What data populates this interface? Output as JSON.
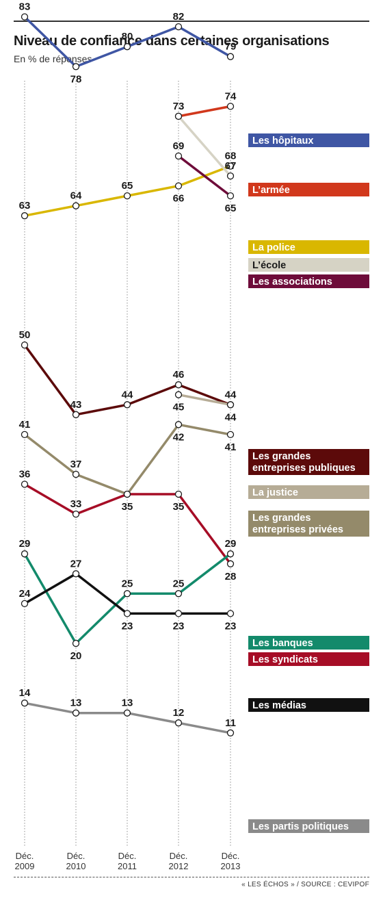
{
  "header": {
    "title": "Niveau de confiance dans certaines organisations",
    "subtitle": "En % de réponses"
  },
  "footer": {
    "source": "« LES ÉCHOS » / SOURCE : CEVIPOF"
  },
  "chart_data": {
    "type": "line",
    "title": "Niveau de confiance dans certaines organisations",
    "subtitle": "En % de réponses",
    "x": [
      "Déc. 2009",
      "Déc. 2010",
      "Déc. 2011",
      "Déc. 2012",
      "Déc. 2013"
    ],
    "x_tick_labels": [
      [
        "Déc.",
        "2009"
      ],
      [
        "Déc.",
        "2010"
      ],
      [
        "Déc.",
        "2011"
      ],
      [
        "Déc.",
        "2012"
      ],
      [
        "Déc.",
        "2013"
      ]
    ],
    "ylim": [
      8,
      86
    ],
    "grid": "vertical dotted lines",
    "legend": "right",
    "series": [
      {
        "name": "Les hôpitaux",
        "label_lines": [
          "Les hôpitaux"
        ],
        "color": "#3f56a4",
        "values": [
          83,
          78,
          80,
          82,
          79
        ],
        "label_pos": [
          "above",
          "below",
          "above",
          "above",
          "above"
        ]
      },
      {
        "name": "L’armée",
        "label_lines": [
          "L’armée"
        ],
        "color": "#d1381c",
        "values": [
          null,
          null,
          null,
          73,
          74
        ],
        "label_pos": [
          null,
          null,
          null,
          "above",
          "above"
        ]
      },
      {
        "name": "La police",
        "label_lines": [
          "La police"
        ],
        "color": "#d9b700",
        "values": [
          63,
          64,
          65,
          66,
          68
        ],
        "label_pos": [
          "above",
          "above",
          "above",
          "below",
          "above"
        ]
      },
      {
        "name": "L’école",
        "label_lines": [
          "L’école"
        ],
        "color": "#d6d3c5",
        "values": [
          null,
          null,
          null,
          73,
          67
        ],
        "label_pos": [
          null,
          null,
          null,
          null,
          "above"
        ]
      },
      {
        "name": "Les associations",
        "label_lines": [
          "Les associations"
        ],
        "color": "#6e0c3a",
        "values": [
          null,
          null,
          null,
          69,
          65
        ],
        "label_pos": [
          null,
          null,
          null,
          "above",
          "below"
        ]
      },
      {
        "name": "Les grandes entreprises publiques",
        "label_lines": [
          "Les grandes",
          "entreprises publiques"
        ],
        "color": "#5c0a0a",
        "values": [
          50,
          43,
          44,
          46,
          44
        ],
        "label_pos": [
          "above",
          "above",
          "above",
          "above",
          "above"
        ]
      },
      {
        "name": "La justice",
        "label_lines": [
          "La justice"
        ],
        "color": "#b6ac96",
        "values": [
          null,
          null,
          null,
          45,
          44
        ],
        "label_pos": [
          null,
          null,
          null,
          "below",
          "below"
        ]
      },
      {
        "name": "Les grandes entreprises privées",
        "label_lines": [
          "Les grandes",
          "entreprises privées"
        ],
        "color": "#948a6a",
        "values": [
          41,
          37,
          35,
          42,
          41
        ],
        "label_pos": [
          "above",
          "above",
          "below",
          "below",
          "below"
        ]
      },
      {
        "name": "Les syndicats",
        "label_lines": [
          "Les syndicats"
        ],
        "color": "#a60d26",
        "values": [
          36,
          33,
          35,
          35,
          28
        ],
        "label_pos": [
          "above",
          "above",
          null,
          "below",
          "below"
        ]
      },
      {
        "name": "Les banques",
        "label_lines": [
          "Les banques"
        ],
        "color": "#138a6b",
        "values": [
          29,
          20,
          25,
          25,
          29
        ],
        "label_pos": [
          "above",
          "below",
          "above",
          "above",
          "above"
        ]
      },
      {
        "name": "Les médias",
        "label_lines": [
          "Les médias"
        ],
        "color": "#111111",
        "values": [
          24,
          27,
          23,
          23,
          23
        ],
        "label_pos": [
          "above",
          "above",
          "below",
          "below",
          "below"
        ]
      },
      {
        "name": "Les partis politiques",
        "label_lines": [
          "Les partis politiques"
        ],
        "color": "#8a8a8a",
        "values": [
          14,
          13,
          13,
          12,
          11
        ],
        "label_pos": [
          "above",
          "above",
          "above",
          "above",
          "above"
        ]
      }
    ]
  }
}
